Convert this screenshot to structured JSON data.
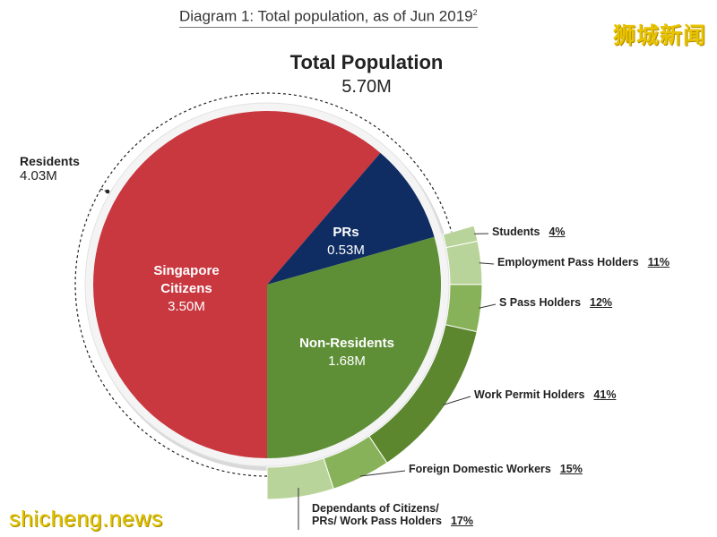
{
  "caption": {
    "text": "Diagram 1: Total population, as of Jun 2019",
    "sup": "2"
  },
  "watermarks": {
    "brand": "狮城新闻",
    "site": "shicheng.news"
  },
  "header": {
    "title": "Total Population",
    "value": "5.70M"
  },
  "residents": {
    "name": "Residents",
    "value": "4.03M"
  },
  "colors": {
    "citizens": "#c9373f",
    "prs": "#0f2d62",
    "non_residents": "#5e8f36",
    "ring_light": "#b9d49a",
    "ring_mid": "#88b25a",
    "ring_dark": "#5c872f",
    "ring_darker": "#4f7428"
  },
  "chart_data": {
    "type": "pie",
    "title": "Total Population",
    "total": 5.7,
    "slices": [
      {
        "name": "Singapore Citizens",
        "value": 3.5,
        "label_line1": "Singapore",
        "label_line2": "Citizens",
        "value_label": "3.50M"
      },
      {
        "name": "PRs",
        "value": 0.53,
        "label_line1": "PRs",
        "value_label": "0.53M"
      },
      {
        "name": "Non-Residents",
        "value": 1.68,
        "label_line1": "Non-Residents",
        "value_label": "1.68M"
      }
    ],
    "non_resident_breakdown": [
      {
        "name": "Students",
        "percent": 4,
        "pct_label": "4%"
      },
      {
        "name": "Employment Pass Holders",
        "percent": 11,
        "pct_label": "11%"
      },
      {
        "name": "S Pass Holders",
        "percent": 12,
        "pct_label": "12%"
      },
      {
        "name": "Work Permit Holders",
        "percent": 41,
        "pct_label": "41%"
      },
      {
        "name": "Foreign Domestic Workers",
        "percent": 15,
        "pct_label": "15%"
      },
      {
        "name": "Dependants of Citizens/ PRs/ Work Pass Holders",
        "line1": "Dependants of Citizens/",
        "line2": "PRs/ Work Pass Holders",
        "percent": 17,
        "pct_label": "17%"
      }
    ]
  }
}
